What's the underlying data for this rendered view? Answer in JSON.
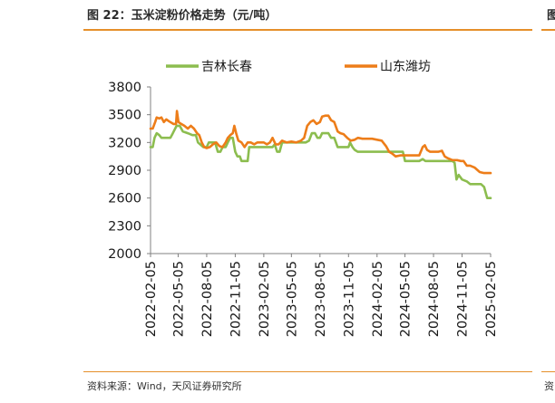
{
  "figure": {
    "title": "图 22：玉米淀粉价格走势（元/吨）",
    "source": "资料来源：Wind，天风证券研究所",
    "neighbor_title_glyph": "图",
    "neighbor_source_glyph": "资"
  },
  "colors": {
    "accent_rule": "#e58f2a",
    "axis": "#808080"
  },
  "chart_data": {
    "type": "line",
    "title": "",
    "xlabel": "",
    "ylabel": "",
    "ylim": [
      2000,
      3800
    ],
    "yticks": [
      2000,
      2300,
      2600,
      2900,
      3200,
      3500,
      3800
    ],
    "xlim": [
      "2022-02-05",
      "2025-02-05"
    ],
    "xticks": [
      "2022-02-05",
      "2022-05-05",
      "2022-08-05",
      "2022-11-05",
      "2023-02-05",
      "2023-05-05",
      "2023-08-05",
      "2023-11-05",
      "2024-02-05",
      "2024-05-05",
      "2024-08-05",
      "2024-11-05",
      "2025-02-05"
    ],
    "grid": false,
    "legend": "top",
    "series": [
      {
        "name": "吉林长春",
        "color": "#8cbd4f",
        "points": [
          [
            "2022-02-05",
            3150
          ],
          [
            "2022-02-12",
            3150
          ],
          [
            "2022-02-18",
            3250
          ],
          [
            "2022-02-25",
            3300
          ],
          [
            "2022-03-05",
            3280
          ],
          [
            "2022-03-12",
            3250
          ],
          [
            "2022-03-25",
            3250
          ],
          [
            "2022-04-10",
            3250
          ],
          [
            "2022-04-18",
            3300
          ],
          [
            "2022-04-30",
            3380
          ],
          [
            "2022-05-10",
            3380
          ],
          [
            "2022-05-20",
            3320
          ],
          [
            "2022-06-05",
            3300
          ],
          [
            "2022-06-20",
            3280
          ],
          [
            "2022-07-01",
            3280
          ],
          [
            "2022-07-08",
            3200
          ],
          [
            "2022-07-15",
            3180
          ],
          [
            "2022-07-25",
            3150
          ],
          [
            "2022-08-05",
            3150
          ],
          [
            "2022-08-12",
            3200
          ],
          [
            "2022-08-20",
            3200
          ],
          [
            "2022-09-01",
            3200
          ],
          [
            "2022-09-10",
            3100
          ],
          [
            "2022-09-18",
            3100
          ],
          [
            "2022-09-25",
            3150
          ],
          [
            "2022-10-05",
            3150
          ],
          [
            "2022-10-12",
            3200
          ],
          [
            "2022-10-20",
            3250
          ],
          [
            "2022-10-28",
            3250
          ],
          [
            "2022-11-05",
            3100
          ],
          [
            "2022-11-12",
            3050
          ],
          [
            "2022-11-20",
            3050
          ],
          [
            "2022-11-25",
            3000
          ],
          [
            "2022-12-05",
            3000
          ],
          [
            "2022-12-15",
            3000
          ],
          [
            "2022-12-20",
            3150
          ],
          [
            "2023-01-05",
            3150
          ],
          [
            "2023-01-20",
            3150
          ],
          [
            "2023-02-05",
            3150
          ],
          [
            "2023-02-20",
            3150
          ],
          [
            "2023-03-05",
            3150
          ],
          [
            "2023-03-12",
            3180
          ],
          [
            "2023-03-20",
            3100
          ],
          [
            "2023-03-28",
            3100
          ],
          [
            "2023-04-05",
            3200
          ],
          [
            "2023-04-20",
            3200
          ],
          [
            "2023-05-05",
            3200
          ],
          [
            "2023-05-20",
            3200
          ],
          [
            "2023-06-05",
            3200
          ],
          [
            "2023-06-20",
            3200
          ],
          [
            "2023-07-01",
            3220
          ],
          [
            "2023-07-10",
            3300
          ],
          [
            "2023-07-20",
            3300
          ],
          [
            "2023-07-28",
            3250
          ],
          [
            "2023-08-05",
            3250
          ],
          [
            "2023-08-12",
            3300
          ],
          [
            "2023-08-22",
            3300
          ],
          [
            "2023-09-01",
            3300
          ],
          [
            "2023-09-10",
            3250
          ],
          [
            "2023-09-20",
            3250
          ],
          [
            "2023-10-01",
            3150
          ],
          [
            "2023-10-20",
            3150
          ],
          [
            "2023-11-05",
            3150
          ],
          [
            "2023-11-10",
            3200
          ],
          [
            "2023-11-18",
            3150
          ],
          [
            "2023-11-25",
            3120
          ],
          [
            "2023-12-05",
            3100
          ],
          [
            "2024-01-10",
            3100
          ],
          [
            "2024-02-05",
            3100
          ],
          [
            "2024-03-10",
            3100
          ],
          [
            "2024-04-10",
            3100
          ],
          [
            "2024-04-28",
            3100
          ],
          [
            "2024-05-02",
            3050
          ],
          [
            "2024-05-05",
            3000
          ],
          [
            "2024-05-20",
            3000
          ],
          [
            "2024-06-05",
            3000
          ],
          [
            "2024-06-20",
            3000
          ],
          [
            "2024-07-01",
            3020
          ],
          [
            "2024-07-10",
            3000
          ],
          [
            "2024-08-05",
            3000
          ],
          [
            "2024-08-20",
            3000
          ],
          [
            "2024-09-05",
            3000
          ],
          [
            "2024-09-25",
            3000
          ],
          [
            "2024-10-05",
            3000
          ],
          [
            "2024-10-12",
            2980
          ],
          [
            "2024-10-18",
            2800
          ],
          [
            "2024-10-25",
            2850
          ],
          [
            "2024-11-05",
            2800
          ],
          [
            "2024-11-20",
            2780
          ],
          [
            "2024-12-01",
            2750
          ],
          [
            "2024-12-20",
            2750
          ],
          [
            "2025-01-05",
            2750
          ],
          [
            "2025-01-15",
            2720
          ],
          [
            "2025-01-25",
            2600
          ],
          [
            "2025-02-05",
            2600
          ]
        ]
      },
      {
        "name": "山东潍坊",
        "color": "#ed7d19",
        "points": [
          [
            "2022-02-05",
            3350
          ],
          [
            "2022-02-12",
            3350
          ],
          [
            "2022-02-20",
            3420
          ],
          [
            "2022-02-25",
            3470
          ],
          [
            "2022-03-05",
            3460
          ],
          [
            "2022-03-12",
            3470
          ],
          [
            "2022-03-20",
            3420
          ],
          [
            "2022-03-28",
            3450
          ],
          [
            "2022-04-05",
            3430
          ],
          [
            "2022-04-20",
            3400
          ],
          [
            "2022-04-28",
            3400
          ],
          [
            "2022-05-01",
            3540
          ],
          [
            "2022-05-06",
            3420
          ],
          [
            "2022-05-15",
            3400
          ],
          [
            "2022-05-25",
            3380
          ],
          [
            "2022-06-05",
            3350
          ],
          [
            "2022-06-15",
            3380
          ],
          [
            "2022-06-25",
            3350
          ],
          [
            "2022-07-05",
            3300
          ],
          [
            "2022-07-12",
            3280
          ],
          [
            "2022-07-20",
            3200
          ],
          [
            "2022-07-28",
            3150
          ],
          [
            "2022-08-05",
            3140
          ],
          [
            "2022-08-15",
            3150
          ],
          [
            "2022-08-25",
            3180
          ],
          [
            "2022-09-05",
            3200
          ],
          [
            "2022-09-15",
            3160
          ],
          [
            "2022-09-25",
            3150
          ],
          [
            "2022-10-05",
            3200
          ],
          [
            "2022-10-12",
            3250
          ],
          [
            "2022-10-20",
            3280
          ],
          [
            "2022-10-28",
            3300
          ],
          [
            "2022-11-02",
            3380
          ],
          [
            "2022-11-08",
            3300
          ],
          [
            "2022-11-15",
            3220
          ],
          [
            "2022-11-25",
            3200
          ],
          [
            "2022-12-05",
            3150
          ],
          [
            "2022-12-15",
            3200
          ],
          [
            "2022-12-25",
            3200
          ],
          [
            "2023-01-05",
            3180
          ],
          [
            "2023-01-15",
            3200
          ],
          [
            "2023-02-05",
            3200
          ],
          [
            "2023-02-15",
            3180
          ],
          [
            "2023-02-25",
            3200
          ],
          [
            "2023-03-05",
            3250
          ],
          [
            "2023-03-15",
            3180
          ],
          [
            "2023-03-25",
            3180
          ],
          [
            "2023-04-05",
            3220
          ],
          [
            "2023-04-20",
            3200
          ],
          [
            "2023-05-05",
            3210
          ],
          [
            "2023-05-20",
            3200
          ],
          [
            "2023-06-05",
            3220
          ],
          [
            "2023-06-15",
            3250
          ],
          [
            "2023-06-25",
            3380
          ],
          [
            "2023-07-05",
            3420
          ],
          [
            "2023-07-15",
            3440
          ],
          [
            "2023-07-25",
            3400
          ],
          [
            "2023-08-05",
            3420
          ],
          [
            "2023-08-12",
            3480
          ],
          [
            "2023-08-22",
            3490
          ],
          [
            "2023-09-01",
            3490
          ],
          [
            "2023-09-10",
            3440
          ],
          [
            "2023-09-20",
            3420
          ],
          [
            "2023-10-01",
            3320
          ],
          [
            "2023-10-10",
            3300
          ],
          [
            "2023-10-20",
            3290
          ],
          [
            "2023-11-01",
            3250
          ],
          [
            "2023-11-12",
            3220
          ],
          [
            "2023-11-25",
            3230
          ],
          [
            "2023-12-05",
            3250
          ],
          [
            "2023-12-20",
            3240
          ],
          [
            "2024-01-05",
            3240
          ],
          [
            "2024-01-20",
            3240
          ],
          [
            "2024-02-05",
            3230
          ],
          [
            "2024-02-20",
            3220
          ],
          [
            "2024-03-05",
            3160
          ],
          [
            "2024-03-15",
            3100
          ],
          [
            "2024-03-25",
            3080
          ],
          [
            "2024-04-05",
            3050
          ],
          [
            "2024-04-20",
            3060
          ],
          [
            "2024-05-05",
            3060
          ],
          [
            "2024-05-20",
            3060
          ],
          [
            "2024-06-05",
            3060
          ],
          [
            "2024-06-20",
            3060
          ],
          [
            "2024-07-01",
            3150
          ],
          [
            "2024-07-08",
            3170
          ],
          [
            "2024-07-15",
            3120
          ],
          [
            "2024-07-25",
            3100
          ],
          [
            "2024-08-05",
            3100
          ],
          [
            "2024-08-20",
            3100
          ],
          [
            "2024-09-01",
            3110
          ],
          [
            "2024-09-10",
            3050
          ],
          [
            "2024-09-20",
            3030
          ],
          [
            "2024-10-05",
            3010
          ],
          [
            "2024-10-20",
            3010
          ],
          [
            "2024-11-01",
            3000
          ],
          [
            "2024-11-10",
            3000
          ],
          [
            "2024-11-20",
            2950
          ],
          [
            "2024-12-01",
            2950
          ],
          [
            "2024-12-15",
            2930
          ],
          [
            "2025-01-01",
            2880
          ],
          [
            "2025-01-15",
            2870
          ],
          [
            "2025-02-05",
            2870
          ]
        ]
      }
    ]
  }
}
